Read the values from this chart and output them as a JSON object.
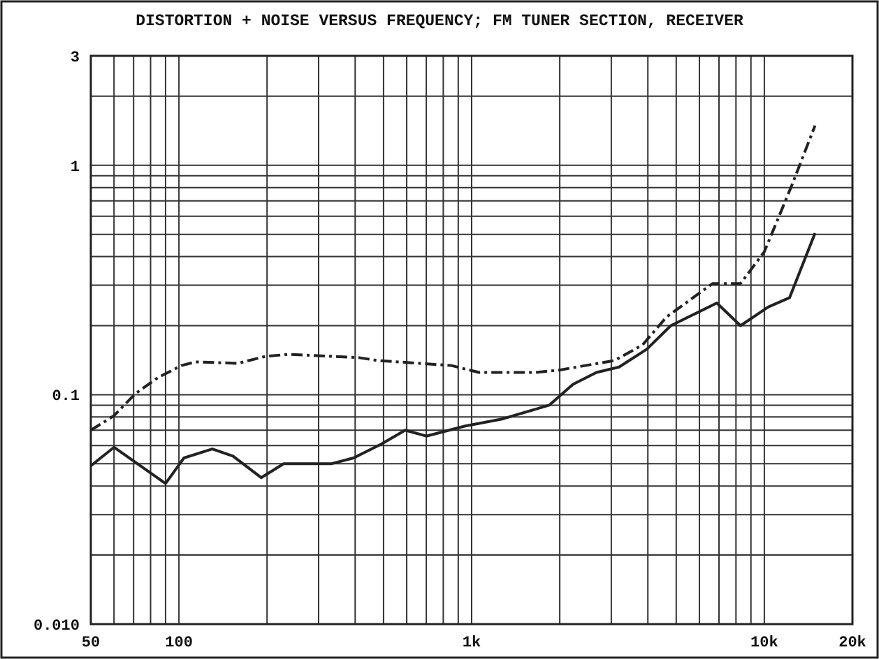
{
  "chart_data": {
    "type": "line",
    "title": "DISTORTION + NOISE VERSUS FREQUENCY;  FM TUNER SECTION, RECEIVER",
    "log": "xy",
    "grid": true,
    "xlim": [
      50,
      20000
    ],
    "ylim": [
      0.01,
      3
    ],
    "xticks": [
      50,
      100,
      {
        "value": 1000,
        "label": "1k"
      },
      {
        "value": 10000,
        "label": "10k"
      },
      {
        "value": 20000,
        "label": "20k"
      }
    ],
    "yticks": [
      {
        "value": 0.01,
        "label": "0.010"
      },
      0.1,
      1,
      3
    ],
    "series": [
      {
        "color": "#222222",
        "line_style": "solid",
        "x": [
          50,
          60,
          90,
          104,
          130,
          153,
          191,
          228,
          331,
          395,
          492,
          593,
          700,
          951,
          1280,
          1840,
          2220,
          2670,
          3190,
          3970,
          4790,
          6880,
          8290,
          10300,
          12200,
          14900
        ],
        "values": [
          0.049,
          0.059,
          0.041,
          0.053,
          0.058,
          0.054,
          0.0435,
          0.05,
          0.05,
          0.053,
          0.061,
          0.07,
          0.066,
          0.073,
          0.0785,
          0.09,
          0.111,
          0.125,
          0.132,
          0.158,
          0.2,
          0.251,
          0.2,
          0.241,
          0.265,
          0.506
        ]
      },
      {
        "color": "#222222",
        "line_style": "dashed",
        "x": [
          50,
          60,
          71,
          85,
          102,
          114,
          159,
          198,
          238,
          413,
          476,
          853,
          1060,
          1650,
          1990,
          3080,
          3840,
          4630,
          6650,
          8290,
          10000,
          12400,
          14900
        ],
        "values": [
          0.07,
          0.081,
          0.101,
          0.119,
          0.134,
          0.139,
          0.137,
          0.147,
          0.15,
          0.145,
          0.141,
          0.134,
          0.125,
          0.125,
          0.128,
          0.141,
          0.165,
          0.218,
          0.305,
          0.305,
          0.42,
          0.815,
          1.49
        ]
      }
    ]
  }
}
